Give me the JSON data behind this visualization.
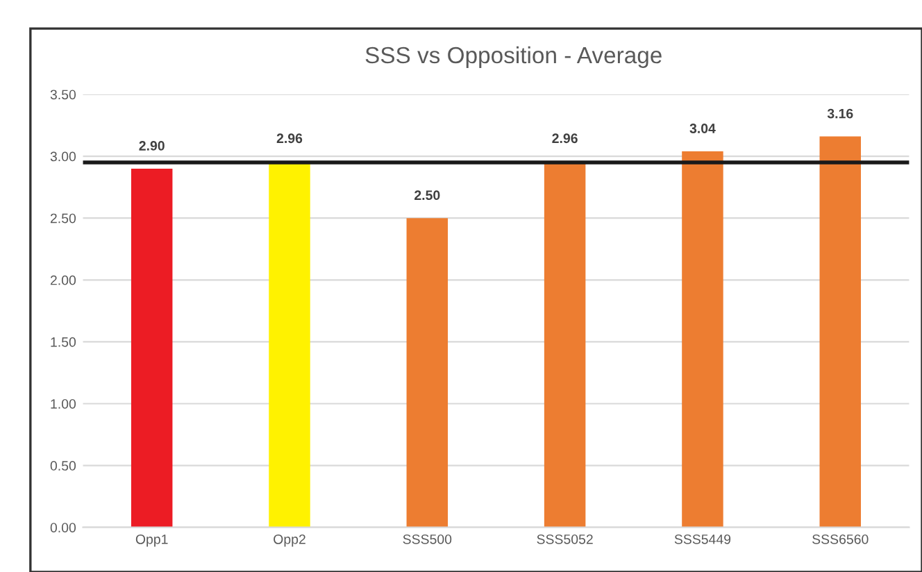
{
  "chart_data": {
    "type": "bar",
    "title": "SSS vs Opposition - Average",
    "categories": [
      "Opp1",
      "Opp2",
      "SSS500",
      "SSS5052",
      "SSS5449",
      "SSS6560"
    ],
    "values": [
      2.9,
      2.96,
      2.5,
      2.96,
      3.04,
      3.16
    ],
    "colors": [
      "#ec1c24",
      "#fff200",
      "#ed7d31",
      "#ed7d31",
      "#ed7d31",
      "#ed7d31"
    ],
    "value_labels": [
      "2.90",
      "2.96",
      "2.50",
      "2.96",
      "3.04",
      "3.16"
    ],
    "ylim": [
      0,
      3.5
    ],
    "yticks": [
      {
        "value": 0,
        "label": "0.00"
      },
      {
        "value": 0.5,
        "label": "0.50"
      },
      {
        "value": 1,
        "label": "1.00"
      },
      {
        "value": 1.5,
        "label": "1.50"
      },
      {
        "value": 2,
        "label": "2.00"
      },
      {
        "value": 2.5,
        "label": "2.50"
      },
      {
        "value": 3,
        "label": "3.00"
      },
      {
        "value": 3.5,
        "label": "3.50"
      }
    ],
    "grid": "y",
    "ref_lines": [
      {
        "axis": "y",
        "value": 2.95,
        "color": "#1a1a1a"
      }
    ]
  }
}
